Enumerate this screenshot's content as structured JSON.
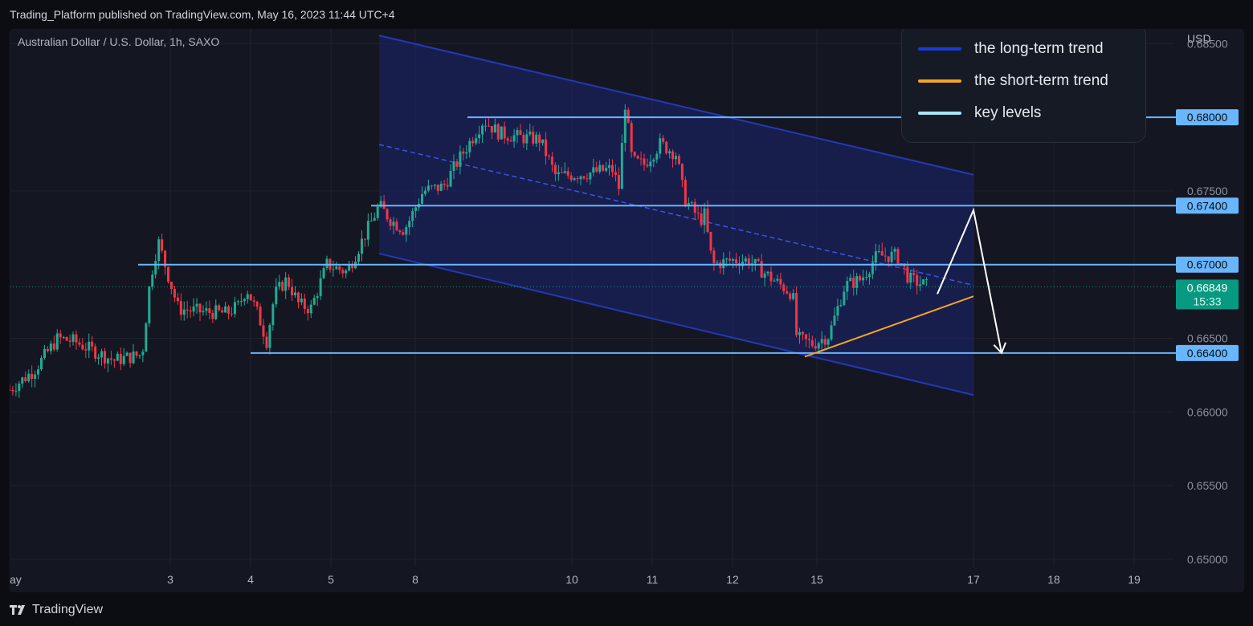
{
  "header": {
    "publisher_line": "Trading_Platform published on TradingView.com, May 16, 2023 11:44 UTC+4"
  },
  "symbol_line": "Australian Dollar / U.S. Dollar, 1h, SAXO",
  "legend": [
    {
      "label": "the long-term trend",
      "color": "#1c3bd6"
    },
    {
      "label": "the short-term trend",
      "color": "#f5a524"
    },
    {
      "label": "key levels",
      "color": "#a9e4ff"
    }
  ],
  "footer": {
    "brand": "TradingView"
  },
  "colors": {
    "up": "#22ab94",
    "down": "#f23645",
    "channel_fill": "#1a2570",
    "channel_line": "#2438b8",
    "key_level": "#69b6ff",
    "current_price": "#089981",
    "arrow": "#ffffff"
  },
  "chart_data": {
    "type": "candlestick",
    "title": "Australian Dollar / U.S. Dollar, 1h, SAXO",
    "currency": "USD",
    "y_range": [
      0.6495,
      0.686
    ],
    "y_ticks": [
      "0.68500",
      "0.67500",
      "0.66500",
      "0.66000",
      "0.65500",
      "0.65000"
    ],
    "x_ticks": [
      {
        "label": "ay",
        "day": 1.0
      },
      {
        "label": "3",
        "day": 3.0
      },
      {
        "label": "4",
        "day": 4.0
      },
      {
        "label": "5",
        "day": 5.0
      },
      {
        "label": "8",
        "day": 6.05
      },
      {
        "label": "10",
        "day": 8.0
      },
      {
        "label": "11",
        "day": 9.0
      },
      {
        "label": "12",
        "day": 10.0
      },
      {
        "label": "15",
        "day": 11.05
      },
      {
        "label": "17",
        "day": 13.0
      },
      {
        "label": "18",
        "day": 14.0
      },
      {
        "label": "19",
        "day": 15.0
      }
    ],
    "x_domain": [
      1.0,
      15.5
    ],
    "price_path": [
      [
        1.0,
        0.6615
      ],
      [
        1.3,
        0.6628
      ],
      [
        1.6,
        0.665
      ],
      [
        1.8,
        0.6648
      ],
      [
        2.1,
        0.664
      ],
      [
        2.3,
        0.6635
      ],
      [
        2.65,
        0.6639
      ],
      [
        2.75,
        0.669
      ],
      [
        2.85,
        0.6716
      ],
      [
        2.95,
        0.6697
      ],
      [
        3.1,
        0.667
      ],
      [
        3.4,
        0.6668
      ],
      [
        3.7,
        0.6667
      ],
      [
        3.85,
        0.6672
      ],
      [
        3.95,
        0.6684
      ],
      [
        4.1,
        0.6665
      ],
      [
        4.2,
        0.6648
      ],
      [
        4.3,
        0.668
      ],
      [
        4.45,
        0.669
      ],
      [
        4.6,
        0.6673
      ],
      [
        4.75,
        0.667
      ],
      [
        4.95,
        0.67
      ],
      [
        5.2,
        0.6695
      ],
      [
        5.35,
        0.6712
      ],
      [
        5.6,
        0.674
      ],
      [
        5.75,
        0.673
      ],
      [
        5.9,
        0.6724
      ],
      [
        5.95,
        0.6727
      ],
      [
        6.15,
        0.675
      ],
      [
        6.4,
        0.6753
      ],
      [
        6.6,
        0.6772
      ],
      [
        6.9,
        0.6798
      ],
      [
        7.1,
        0.6789
      ],
      [
        7.4,
        0.6786
      ],
      [
        7.6,
        0.6785
      ],
      [
        7.8,
        0.676
      ],
      [
        8.2,
        0.6762
      ],
      [
        8.5,
        0.6765
      ],
      [
        8.6,
        0.675
      ],
      [
        8.65,
        0.6815
      ],
      [
        8.75,
        0.677
      ],
      [
        8.9,
        0.6768
      ],
      [
        9.1,
        0.6782
      ],
      [
        9.3,
        0.6775
      ],
      [
        9.4,
        0.6745
      ],
      [
        9.6,
        0.673
      ],
      [
        9.65,
        0.6734
      ],
      [
        9.75,
        0.67
      ],
      [
        10.0,
        0.6703
      ],
      [
        10.2,
        0.6703
      ],
      [
        10.5,
        0.669
      ],
      [
        10.75,
        0.668
      ],
      [
        10.8,
        0.665
      ],
      [
        11.0,
        0.6646
      ],
      [
        11.2,
        0.6652
      ],
      [
        11.4,
        0.6686
      ],
      [
        11.6,
        0.669
      ],
      [
        11.8,
        0.6706
      ],
      [
        12.05,
        0.6706
      ],
      [
        12.2,
        0.669
      ],
      [
        12.45,
        0.6685
      ]
    ],
    "current_price": "0.66849",
    "countdown": "15:33",
    "key_levels": [
      {
        "label": "0.68000",
        "value": 0.68,
        "x_from": 6.7
      },
      {
        "label": "0.67400",
        "value": 0.674,
        "x_from": 5.5
      },
      {
        "label": "0.67000",
        "value": 0.67,
        "x_from": 2.6
      },
      {
        "label": "0.66400",
        "value": 0.664,
        "x_from": 4.0
      }
    ],
    "long_term_channel": {
      "x_start": 5.6,
      "x_end": 13.0,
      "upper": [
        0.68555,
        0.6761
      ],
      "mid": [
        0.67815,
        0.6686
      ],
      "lower": [
        0.67075,
        0.66115
      ]
    },
    "short_term_trend": {
      "x": [
        10.9,
        13.0
      ],
      "y": [
        0.66375,
        0.66785
      ]
    },
    "projection": [
      [
        12.55,
        0.668
      ],
      [
        13.0,
        0.6737
      ],
      [
        13.35,
        0.664
      ]
    ]
  }
}
